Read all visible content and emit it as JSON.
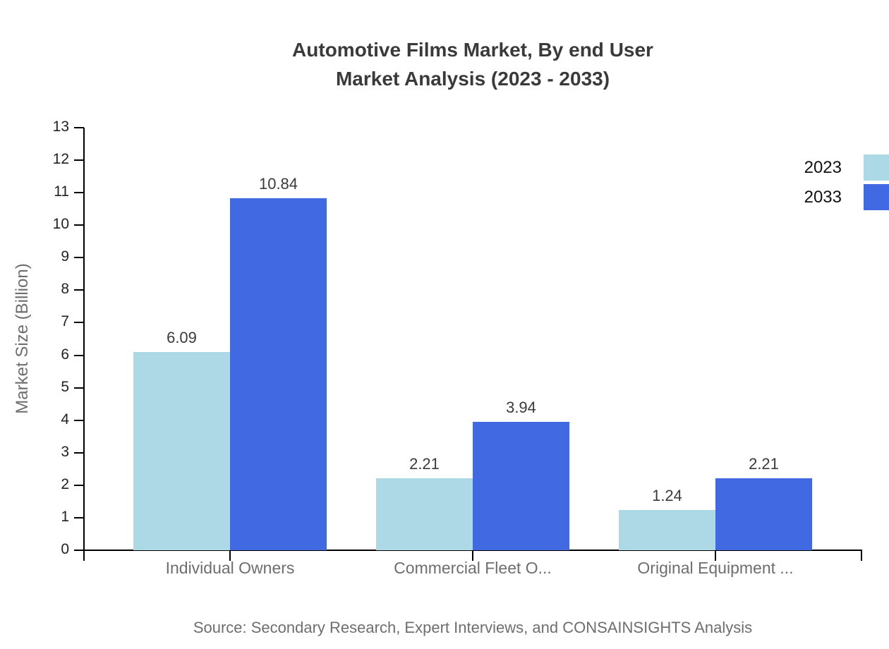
{
  "title": {
    "line1": "Automotive Films Market, By end User",
    "line2": "Market Analysis (2023 - 2033)"
  },
  "source": "Source: Secondary Research, Expert Interviews, and CONSAINSIGHTS Analysis",
  "colors": {
    "series_2023": "#ADD8E6",
    "series_2033": "#4169E1",
    "axis": "#000000",
    "title_text": "#3a3a3a",
    "muted_text": "#6e6e6e"
  },
  "chart_data": {
    "type": "bar",
    "title": "Automotive Films Market, By end User Market Analysis (2023 - 2033)",
    "categories": [
      "Individual Owners",
      "Commercial Fleet O...",
      "Original Equipment ..."
    ],
    "series": [
      {
        "name": "2023",
        "color": "#ADD8E6",
        "values": [
          6.09,
          2.21,
          1.24
        ]
      },
      {
        "name": "2033",
        "color": "#4169E1",
        "values": [
          10.84,
          3.94,
          2.21
        ]
      }
    ],
    "value_labels": [
      "6.09",
      "10.84",
      "2.21",
      "3.94",
      "1.24",
      "2.21"
    ],
    "xlabel": "",
    "ylabel": "Market Size (Billion)",
    "ylim": [
      0,
      13
    ],
    "ytick_step": 1,
    "yticks": [
      0,
      1,
      2,
      3,
      4,
      5,
      6,
      7,
      8,
      9,
      10,
      11,
      12,
      13
    ],
    "grid": false,
    "legend_position": "top-right",
    "legend_entries": [
      "2023",
      "2033"
    ]
  }
}
